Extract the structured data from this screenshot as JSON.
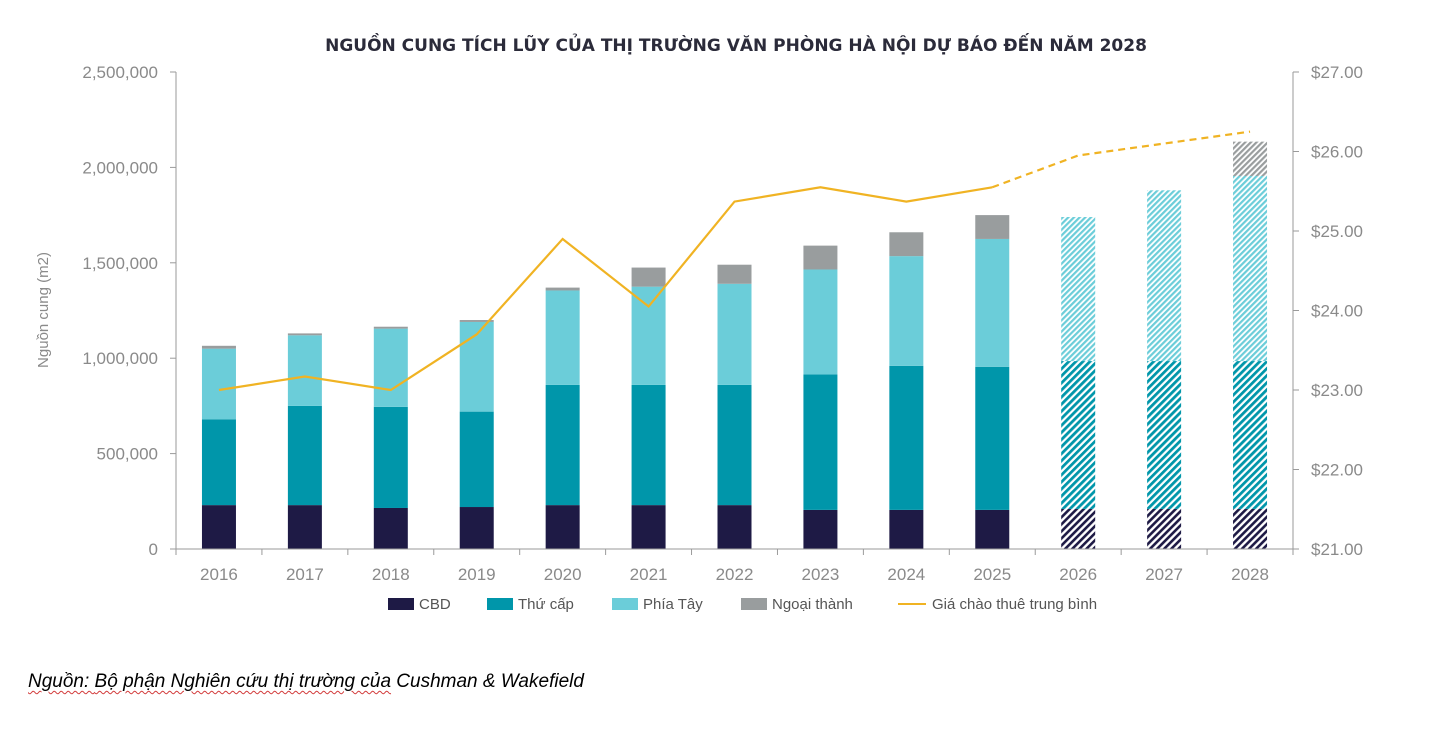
{
  "chart_data": {
    "type": "bar",
    "stacked": true,
    "title": "NGUỒN CUNG TÍCH LŨY CỦA THỊ TRƯỜNG VĂN PHÒNG HÀ NỘI DỰ BÁO ĐẾN NĂM 2028",
    "ylabel": "Nguồn cung (m2)",
    "categories": [
      "2016",
      "2017",
      "2018",
      "2019",
      "2020",
      "2021",
      "2022",
      "2023",
      "2024",
      "2025",
      "2026",
      "2027",
      "2028"
    ],
    "forecast_categories": [
      "2026",
      "2027",
      "2028"
    ],
    "ylim": [
      0,
      2500000
    ],
    "yticks": [
      "0",
      "500,000",
      "1,000,000",
      "1,500,000",
      "2,000,000",
      "2,500,000"
    ],
    "y2lim": [
      21,
      27
    ],
    "y2ticks": [
      "$21.00",
      "$22.00",
      "$23.00",
      "$24.00",
      "$25.00",
      "$26.00",
      "$27.00"
    ],
    "series": [
      {
        "name": "CBD",
        "color": "#1e1a45",
        "values": [
          230000,
          230000,
          215000,
          220000,
          230000,
          230000,
          230000,
          205000,
          205000,
          205000,
          210000,
          210000,
          210000
        ]
      },
      {
        "name": "Thứ cấp",
        "color": "#0096aa",
        "values": [
          450000,
          520000,
          530000,
          500000,
          630000,
          630000,
          630000,
          710000,
          755000,
          750000,
          775000,
          775000,
          775000
        ]
      },
      {
        "name": "Phía Tây",
        "color": "#6bcdd9",
        "values": [
          370000,
          370000,
          410000,
          470000,
          495000,
          515000,
          530000,
          550000,
          575000,
          670000,
          755000,
          895000,
          970000
        ]
      },
      {
        "name": "Ngoại thành",
        "color": "#999d9e",
        "values": [
          15000,
          10000,
          10000,
          10000,
          15000,
          100000,
          100000,
          125000,
          125000,
          125000,
          0,
          0,
          180000
        ]
      }
    ],
    "line": {
      "name": "Giá chào thuê trung bình",
      "color": "#f0b323",
      "axis": "right",
      "values": [
        23.0,
        23.17,
        23.0,
        23.7,
        24.9,
        24.05,
        25.37,
        25.55,
        25.37,
        25.55,
        25.95,
        26.1,
        26.25
      ],
      "dashed_from": "2025"
    },
    "legend_position": "bottom"
  },
  "source_note": {
    "prefix": "Nguồn: ",
    "underlined": "Bộ phận Nghiên cứu thị trường của",
    "suffix": " Cushman & Wakefield"
  }
}
